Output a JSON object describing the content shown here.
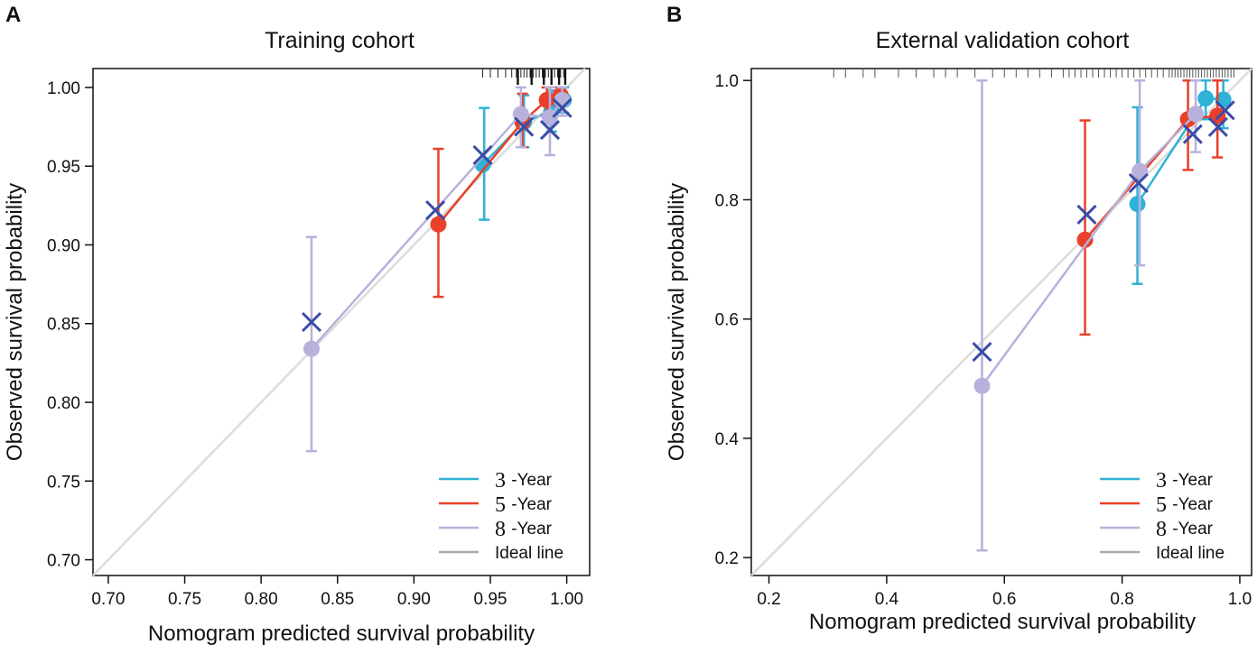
{
  "figure": {
    "panels": [
      "A",
      "B"
    ]
  },
  "chart_data": [
    {
      "type": "calibration",
      "panel": "A",
      "title": "Training cohort",
      "xlabel": "Nomogram predicted survival probability",
      "ylabel": "Observed survival probability",
      "xlim": [
        0.69,
        1.015
      ],
      "ylim": [
        0.69,
        1.012
      ],
      "xticks": [
        0.7,
        0.75,
        0.8,
        0.85,
        0.9,
        0.95,
        1.0
      ],
      "yticks": [
        0.7,
        0.75,
        0.8,
        0.85,
        0.9,
        0.95,
        1.0
      ],
      "xtick_labels": [
        "0.70",
        "0.75",
        "0.80",
        "0.85",
        "0.90",
        "0.95",
        "1.00"
      ],
      "ytick_labels": [
        "0.70",
        "0.75",
        "0.80",
        "0.85",
        "0.90",
        "0.95",
        "1.00"
      ],
      "legend_position": "bottom-right",
      "legend": [
        {
          "num": "3",
          "text": " -Year",
          "color": "#2eb2d6"
        },
        {
          "num": "5",
          "text": " -Year",
          "color": "#e8402a"
        },
        {
          "num": "8",
          "text": " -Year",
          "color": "#b7b1dc"
        },
        {
          "num": "",
          "text": "Ideal line",
          "color": "#aaaaaa"
        }
      ],
      "ideal_line_color": "#dcdcdc",
      "cross_color": "#3a4da6",
      "series": [
        {
          "name": "3-Year",
          "color": "#2eb2d6",
          "points": [
            {
              "x": 0.945,
              "y": 0.951,
              "lo": 0.916,
              "hi": 0.987,
              "cx": 0.946
            },
            {
              "x": 0.972,
              "y": 0.978,
              "lo": 0.962,
              "hi": 0.995
            },
            {
              "x": 0.99,
              "y": 0.985,
              "lo": 0.972,
              "hi": 0.998
            },
            {
              "x": 0.998,
              "y": 0.992,
              "lo": 0.984,
              "hi": 1.0
            }
          ]
        },
        {
          "name": "5-Year",
          "color": "#e8402a",
          "points": [
            {
              "x": 0.916,
              "y": 0.913,
              "lo": 0.867,
              "hi": 0.961
            },
            {
              "x": 0.971,
              "y": 0.978,
              "lo": 0.962,
              "hi": 0.996
            },
            {
              "x": 0.987,
              "y": 0.992,
              "lo": 0.982,
              "hi": 1.0
            },
            {
              "x": 0.996,
              "y": 0.995,
              "lo": 0.988,
              "hi": 1.0
            }
          ]
        },
        {
          "name": "8-Year",
          "color": "#b7b1dc",
          "points": [
            {
              "x": 0.833,
              "y": 0.834,
              "lo": 0.769,
              "hi": 0.905
            },
            {
              "x": 0.97,
              "y": 0.983,
              "lo": 0.962,
              "hi": 1.0
            },
            {
              "x": 0.989,
              "y": 0.981,
              "lo": 0.957,
              "hi": 1.0
            },
            {
              "x": 0.997,
              "y": 0.992,
              "lo": 0.982,
              "hi": 1.0
            }
          ]
        }
      ],
      "crosses": [
        {
          "x": 0.833,
          "y": 0.851
        },
        {
          "x": 0.914,
          "y": 0.922
        },
        {
          "x": 0.945,
          "y": 0.957
        },
        {
          "x": 0.972,
          "y": 0.975
        },
        {
          "x": 0.989,
          "y": 0.973
        },
        {
          "x": 0.997,
          "y": 0.987
        }
      ],
      "rug": [
        0.945,
        0.95,
        0.955,
        0.96,
        0.964,
        0.967,
        0.97,
        0.972,
        0.974,
        0.976,
        0.978,
        0.98,
        0.982,
        0.984,
        0.986,
        0.988,
        0.99,
        0.992,
        0.994,
        0.996,
        0.998
      ],
      "rug_heavy": [
        0.968,
        0.977,
        0.985,
        0.99,
        0.995,
        0.999
      ]
    },
    {
      "type": "calibration",
      "panel": "B",
      "title": "External validation cohort",
      "xlabel": "Nomogram predicted survival probability",
      "ylabel": "Observed survival probability",
      "xlim": [
        0.17,
        1.02
      ],
      "ylim": [
        0.17,
        1.02
      ],
      "xticks": [
        0.2,
        0.4,
        0.6,
        0.8,
        1.0
      ],
      "yticks": [
        0.2,
        0.4,
        0.6,
        0.8,
        1.0
      ],
      "xtick_labels": [
        "0.2",
        "0.4",
        "0.6",
        "0.8",
        "1.0"
      ],
      "ytick_labels": [
        "0.2",
        "0.4",
        "0.6",
        "0.8",
        "1.0"
      ],
      "legend_position": "bottom-right",
      "legend": [
        {
          "num": "3",
          "text": " -Year",
          "color": "#2eb2d6"
        },
        {
          "num": "5",
          "text": " -Year",
          "color": "#e8402a"
        },
        {
          "num": "8",
          "text": " -Year",
          "color": "#b7b1dc"
        },
        {
          "num": "",
          "text": "Ideal line",
          "color": "#aaaaaa"
        }
      ],
      "ideal_line_color": "#dcdcdc",
      "cross_color": "#3a4da6",
      "series": [
        {
          "name": "3-Year",
          "color": "#2eb2d6",
          "points": [
            {
              "x": 0.826,
              "y": 0.793,
              "lo": 0.659,
              "hi": 0.955
            },
            {
              "x": 0.942,
              "y": 0.97,
              "lo": 0.935,
              "hi": 1.0
            },
            {
              "x": 0.972,
              "y": 0.968,
              "lo": 0.92,
              "hi": 1.0
            }
          ]
        },
        {
          "name": "5-Year",
          "color": "#e8402a",
          "points": [
            {
              "x": 0.737,
              "y": 0.733,
              "lo": 0.574,
              "hi": 0.933
            },
            {
              "x": 0.912,
              "y": 0.935,
              "lo": 0.85,
              "hi": 1.0
            },
            {
              "x": 0.962,
              "y": 0.941,
              "lo": 0.871,
              "hi": 1.0
            }
          ]
        },
        {
          "name": "8-Year",
          "color": "#b7b1dc",
          "points": [
            {
              "x": 0.562,
              "y": 0.488,
              "lo": 0.212,
              "hi": 1.0
            },
            {
              "x": 0.83,
              "y": 0.848,
              "lo": 0.69,
              "hi": 1.0
            },
            {
              "x": 0.925,
              "y": 0.944,
              "lo": 0.88,
              "hi": 1.0
            }
          ]
        }
      ],
      "crosses": [
        {
          "x": 0.562,
          "y": 0.545
        },
        {
          "x": 0.74,
          "y": 0.775
        },
        {
          "x": 0.828,
          "y": 0.828
        },
        {
          "x": 0.92,
          "y": 0.91
        },
        {
          "x": 0.963,
          "y": 0.922
        },
        {
          "x": 0.975,
          "y": 0.95
        }
      ],
      "rug": [
        0.31,
        0.33,
        0.36,
        0.38,
        0.42,
        0.45,
        0.48,
        0.5,
        0.52,
        0.55,
        0.58,
        0.6,
        0.62,
        0.64,
        0.66,
        0.68,
        0.7,
        0.71,
        0.72,
        0.73,
        0.74,
        0.75,
        0.76,
        0.77,
        0.78,
        0.79,
        0.8,
        0.81,
        0.82,
        0.83,
        0.84,
        0.85,
        0.86,
        0.87,
        0.88,
        0.885,
        0.89,
        0.895,
        0.9,
        0.905,
        0.91,
        0.915,
        0.92,
        0.925,
        0.93,
        0.935,
        0.94,
        0.945,
        0.95,
        0.955,
        0.96,
        0.965,
        0.97,
        0.975,
        0.98,
        0.985,
        0.99
      ],
      "rug_heavy": []
    }
  ]
}
